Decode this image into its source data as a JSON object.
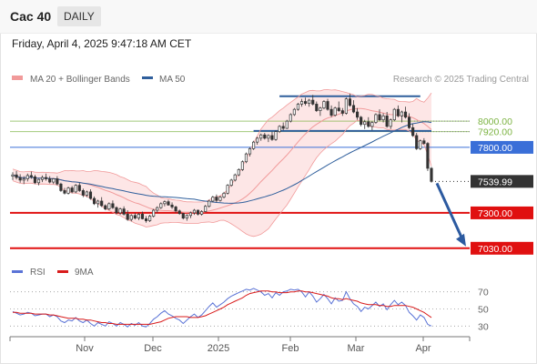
{
  "header": {
    "symbol": "Cac 40",
    "period": "DAILY",
    "datetime": "Friday, April 4, 2025 9:47:18 AM CET"
  },
  "colors": {
    "bollinger": "#f19a9a",
    "bollinger_fill": "#fde3e3",
    "ma50": "#2f5f9c",
    "up_candle": "#ffffff",
    "down_candle": "#333333",
    "support": "#e01010",
    "resistance_blue": "#3a6fd8",
    "green_level": "#7cb342",
    "rsi": "#5a73d6",
    "rsi_ma": "#d81b1b",
    "arrow": "#2c5aa0",
    "current_price": "#333333"
  },
  "chart_data": [
    {
      "type": "candlestick",
      "legend": [
        {
          "label": "MA 20 + Bollinger Bands",
          "color": "#f19a9a",
          "icon": "swatch-icon"
        },
        {
          "label": "MA 50",
          "color": "#2f5f9c",
          "icon": "line-icon"
        }
      ],
      "credit": "Research © 2025 Trading Central",
      "x_ticks": [
        "Nov",
        "Dec",
        "2025",
        "Feb",
        "Mar",
        "Apr"
      ],
      "ylim": [
        6980,
        8230
      ],
      "levels": [
        {
          "value": 8000.0,
          "label": "8000.00",
          "kind": "resistance",
          "color": "#7cb342",
          "style": "line"
        },
        {
          "value": 7920.0,
          "label": "7920.00",
          "kind": "resistance",
          "color": "#7cb342",
          "style": "line"
        },
        {
          "value": 7800.0,
          "label": "7800.00",
          "kind": "pivot",
          "color": "#3a6fd8",
          "style": "box"
        },
        {
          "value": 7539.99,
          "label": "7539.99",
          "kind": "last",
          "color": "#333333",
          "style": "box"
        },
        {
          "value": 7300.0,
          "label": "7300.00",
          "kind": "support",
          "color": "#e01010",
          "style": "box"
        },
        {
          "value": 7030.0,
          "label": "7030.00",
          "kind": "support",
          "color": "#e01010",
          "style": "box"
        }
      ],
      "resistance_segment": {
        "value": 8190,
        "start_index": 72,
        "end_index": 110
      },
      "pivot_segment": {
        "value": 7925,
        "start_index": 65,
        "end_index": 113
      },
      "ohlc": [
        [
          7580,
          7610,
          7550,
          7590
        ],
        [
          7590,
          7620,
          7555,
          7570
        ],
        [
          7570,
          7595,
          7530,
          7550
        ],
        [
          7550,
          7580,
          7520,
          7560
        ],
        [
          7560,
          7600,
          7540,
          7585
        ],
        [
          7585,
          7615,
          7560,
          7575
        ],
        [
          7575,
          7590,
          7520,
          7530
        ],
        [
          7530,
          7560,
          7510,
          7555
        ],
        [
          7555,
          7585,
          7535,
          7570
        ],
        [
          7570,
          7600,
          7545,
          7560
        ],
        [
          7560,
          7580,
          7525,
          7535
        ],
        [
          7535,
          7565,
          7520,
          7560
        ],
        [
          7560,
          7580,
          7510,
          7520
        ],
        [
          7520,
          7530,
          7460,
          7470
        ],
        [
          7470,
          7490,
          7440,
          7450
        ],
        [
          7450,
          7500,
          7440,
          7490
        ],
        [
          7490,
          7505,
          7450,
          7460
        ],
        [
          7460,
          7520,
          7450,
          7510
        ],
        [
          7510,
          7530,
          7460,
          7470
        ],
        [
          7470,
          7485,
          7420,
          7435
        ],
        [
          7435,
          7470,
          7420,
          7460
        ],
        [
          7460,
          7480,
          7400,
          7410
        ],
        [
          7410,
          7425,
          7360,
          7370
        ],
        [
          7370,
          7400,
          7340,
          7390
        ],
        [
          7390,
          7420,
          7345,
          7355
        ],
        [
          7355,
          7365,
          7320,
          7330
        ],
        [
          7330,
          7380,
          7320,
          7370
        ],
        [
          7370,
          7395,
          7330,
          7340
        ],
        [
          7340,
          7350,
          7290,
          7300
        ],
        [
          7300,
          7340,
          7285,
          7330
        ],
        [
          7330,
          7350,
          7280,
          7290
        ],
        [
          7290,
          7320,
          7240,
          7250
        ],
        [
          7250,
          7290,
          7235,
          7280
        ],
        [
          7280,
          7300,
          7250,
          7260
        ],
        [
          7260,
          7300,
          7245,
          7290
        ],
        [
          7290,
          7310,
          7250,
          7255
        ],
        [
          7255,
          7275,
          7225,
          7240
        ],
        [
          7240,
          7285,
          7230,
          7275
        ],
        [
          7275,
          7330,
          7265,
          7320
        ],
        [
          7320,
          7350,
          7300,
          7340
        ],
        [
          7340,
          7380,
          7330,
          7370
        ],
        [
          7370,
          7395,
          7350,
          7385
        ],
        [
          7385,
          7400,
          7355,
          7360
        ],
        [
          7360,
          7380,
          7330,
          7345
        ],
        [
          7345,
          7355,
          7300,
          7315
        ],
        [
          7315,
          7325,
          7285,
          7295
        ],
        [
          7295,
          7300,
          7250,
          7260
        ],
        [
          7260,
          7290,
          7240,
          7280
        ],
        [
          7280,
          7310,
          7260,
          7300
        ],
        [
          7300,
          7330,
          7285,
          7320
        ],
        [
          7320,
          7325,
          7280,
          7290
        ],
        [
          7290,
          7320,
          7280,
          7310
        ],
        [
          7310,
          7360,
          7305,
          7350
        ],
        [
          7350,
          7400,
          7340,
          7390
        ],
        [
          7390,
          7430,
          7380,
          7420
        ],
        [
          7420,
          7440,
          7380,
          7395
        ],
        [
          7395,
          7430,
          7385,
          7420
        ],
        [
          7420,
          7460,
          7410,
          7450
        ],
        [
          7450,
          7520,
          7440,
          7510
        ],
        [
          7510,
          7560,
          7500,
          7550
        ],
        [
          7550,
          7600,
          7540,
          7590
        ],
        [
          7590,
          7640,
          7580,
          7630
        ],
        [
          7630,
          7700,
          7620,
          7690
        ],
        [
          7690,
          7760,
          7680,
          7750
        ],
        [
          7750,
          7800,
          7730,
          7790
        ],
        [
          7790,
          7850,
          7780,
          7840
        ],
        [
          7840,
          7880,
          7820,
          7870
        ],
        [
          7870,
          7905,
          7850,
          7895
        ],
        [
          7895,
          7910,
          7860,
          7870
        ],
        [
          7870,
          7900,
          7840,
          7890
        ],
        [
          7890,
          7920,
          7850,
          7860
        ],
        [
          7860,
          7930,
          7850,
          7920
        ],
        [
          7920,
          7970,
          7910,
          7960
        ],
        [
          7960,
          7990,
          7930,
          7945
        ],
        [
          7945,
          8010,
          7940,
          8000
        ],
        [
          8000,
          8060,
          7990,
          8050
        ],
        [
          8050,
          8100,
          8040,
          8090
        ],
        [
          8090,
          8140,
          8080,
          8130
        ],
        [
          8130,
          8170,
          8110,
          8150
        ],
        [
          8150,
          8180,
          8120,
          8135
        ],
        [
          8135,
          8170,
          8110,
          8160
        ],
        [
          8160,
          8200,
          8120,
          8130
        ],
        [
          8130,
          8150,
          8070,
          8080
        ],
        [
          8080,
          8110,
          8040,
          8100
        ],
        [
          8100,
          8160,
          8090,
          8150
        ],
        [
          8150,
          8170,
          8080,
          8090
        ],
        [
          8090,
          8120,
          8030,
          8045
        ],
        [
          8045,
          8110,
          8035,
          8100
        ],
        [
          8100,
          8150,
          8070,
          8080
        ],
        [
          8080,
          8100,
          8040,
          8060
        ],
        [
          8060,
          8180,
          8050,
          8170
        ],
        [
          8170,
          8210,
          8110,
          8120
        ],
        [
          8120,
          8160,
          8060,
          8070
        ],
        [
          8070,
          8100,
          8010,
          8030
        ],
        [
          8030,
          8040,
          7960,
          7975
        ],
        [
          7975,
          8010,
          7940,
          7995
        ],
        [
          7995,
          8030,
          7950,
          7960
        ],
        [
          7960,
          8000,
          7930,
          7990
        ],
        [
          7990,
          8060,
          7980,
          8050
        ],
        [
          8050,
          8090,
          8000,
          8010
        ],
        [
          8010,
          8060,
          7990,
          8040
        ],
        [
          8040,
          8070,
          7950,
          7960
        ],
        [
          7960,
          8020,
          7940,
          8010
        ],
        [
          8010,
          8100,
          8000,
          8090
        ],
        [
          8090,
          8120,
          8030,
          8040
        ],
        [
          8040,
          8080,
          7990,
          8070
        ],
        [
          8070,
          8110,
          8020,
          8030
        ],
        [
          8030,
          8060,
          7940,
          7950
        ],
        [
          7950,
          7980,
          7880,
          7890
        ],
        [
          7890,
          7910,
          7780,
          7790
        ],
        [
          7790,
          7860,
          7780,
          7850
        ],
        [
          7850,
          7870,
          7820,
          7830
        ],
        [
          7830,
          7840,
          7620,
          7640
        ],
        [
          7640,
          7650,
          7530,
          7540
        ]
      ]
    },
    {
      "type": "line",
      "title": "RSI",
      "legend": [
        {
          "label": "RSI",
          "color": "#5a73d6"
        },
        {
          "label": "9MA",
          "color": "#d81b1b"
        }
      ],
      "ylim": [
        25,
        75
      ],
      "y_ticks": [
        70,
        50,
        30
      ],
      "series": [
        {
          "name": "RSI",
          "values": [
            47,
            45,
            43,
            44,
            46,
            45,
            42,
            43,
            44,
            44,
            41,
            43,
            41,
            36,
            34,
            37,
            36,
            40,
            36,
            34,
            37,
            33,
            30,
            34,
            32,
            30,
            35,
            33,
            30,
            34,
            32,
            29,
            33,
            31,
            34,
            30,
            29,
            33,
            38,
            41,
            45,
            48,
            44,
            42,
            39,
            37,
            33,
            37,
            41,
            44,
            40,
            43,
            48,
            53,
            57,
            52,
            55,
            58,
            62,
            65,
            67,
            69,
            71,
            73,
            72,
            74,
            72,
            70,
            66,
            68,
            63,
            69,
            66,
            70,
            71,
            73,
            72,
            73,
            70,
            64,
            70,
            65,
            58,
            62,
            67,
            62,
            56,
            63,
            59,
            60,
            70,
            62,
            56,
            53,
            47,
            52,
            50,
            54,
            58,
            53,
            56,
            49,
            55,
            60,
            55,
            58,
            54,
            46,
            42,
            37,
            43,
            40,
            32,
            30
          ]
        },
        {
          "name": "9MA",
          "values": [
            46,
            46,
            45,
            45,
            45,
            45,
            44,
            44,
            44,
            44,
            43,
            43,
            42,
            41,
            40,
            39,
            39,
            39,
            38,
            38,
            37,
            37,
            36,
            35,
            34,
            34,
            33,
            33,
            32,
            32,
            32,
            32,
            32,
            32,
            32,
            32,
            32,
            32,
            33,
            34,
            35,
            37,
            39,
            40,
            41,
            41,
            41,
            41,
            40,
            40,
            40,
            41,
            42,
            44,
            46,
            48,
            50,
            52,
            55,
            57,
            59,
            61,
            63,
            66,
            68,
            69,
            70,
            71,
            71,
            71,
            70,
            70,
            69,
            69,
            69,
            70,
            70,
            71,
            71,
            70,
            70,
            69,
            68,
            67,
            66,
            65,
            63,
            62,
            62,
            61,
            62,
            61,
            60,
            59,
            57,
            56,
            55,
            55,
            55,
            54,
            54,
            53,
            53,
            54,
            54,
            54,
            54,
            53,
            52,
            50,
            48,
            46,
            43,
            40
          ]
        }
      ]
    }
  ]
}
